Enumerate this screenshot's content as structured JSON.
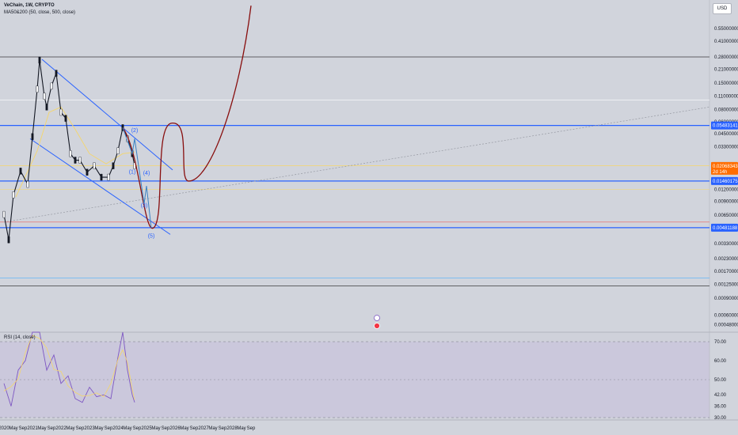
{
  "header": {
    "title": "VeChain, 1W, CRYPTO",
    "indicator": "MA50&200 (50, close, 500, close)"
  },
  "currency": "USD",
  "rsi_label": "RSI (14, close)",
  "colors": {
    "background": "#d1d4dc",
    "channel": "#2962ff",
    "projection": "#880e0e",
    "ma_yellow": "#f5d66b",
    "rsi_line": "#7e57c2",
    "rsi_band": "#c9c5dc",
    "price_tag": "#ff6d00",
    "level_tag": "#2962ff"
  },
  "price_tags": {
    "current_price": "0.02068343",
    "countdown": "2d 14h",
    "upper_level": "0.05483141",
    "middle_level": "0.01460175",
    "lower_level": "0.00481188"
  },
  "wave_labels": [
    "(1)",
    "(2)",
    "(3)",
    "(4)",
    "(5)"
  ],
  "chart_data": [
    {
      "type": "line",
      "title": "VeChain, 1W, CRYPTO",
      "scale": "log",
      "ylim": [
        0.0004,
        0.9
      ],
      "y_ticks": [
        "0.55000000",
        "0.41000000",
        "0.28000000",
        "0.21000000",
        "0.15000000",
        "0.11000000",
        "0.08000000",
        "0.06000000",
        "0.04500000",
        "0.03300000",
        "0.02000000",
        "0.01200000",
        "0.00900000",
        "0.00650000",
        "0.00330000",
        "0.00230000",
        "0.00170000",
        "0.00125000",
        "0.00090000",
        "0.00060000",
        "0.00048000"
      ],
      "x_ticks": [
        "2020",
        "May",
        "Sep",
        "2021",
        "May",
        "Sep",
        "2022",
        "May",
        "Sep",
        "2023",
        "May",
        "Sep",
        "2024",
        "May",
        "Sep",
        "2025",
        "May",
        "Sep",
        "2026",
        "May",
        "Sep",
        "2027",
        "May",
        "Sep",
        "2028",
        "May",
        "Sep"
      ],
      "series": [
        {
          "name": "VeChain",
          "x": [
            "2020-01",
            "2020-03",
            "2020-05",
            "2020-08",
            "2020-11",
            "2021-01",
            "2021-03",
            "2021-04",
            "2021-06",
            "2021-07",
            "2021-09",
            "2021-11",
            "2022-01",
            "2022-03",
            "2022-05",
            "2022-07",
            "2022-09",
            "2022-12",
            "2023-03",
            "2023-06",
            "2023-09",
            "2023-11",
            "2024-01",
            "2024-03",
            "2024-05",
            "2024-07",
            "2024-08"
          ],
          "values": [
            0.0066,
            0.0036,
            0.0105,
            0.0185,
            0.0135,
            0.042,
            0.13,
            0.26,
            0.11,
            0.085,
            0.14,
            0.19,
            0.075,
            0.065,
            0.028,
            0.024,
            0.024,
            0.018,
            0.021,
            0.016,
            0.016,
            0.021,
            0.03,
            0.052,
            0.04,
            0.028,
            0.021
          ]
        }
      ],
      "horizontal_levels": [
        0.28,
        0.1,
        0.05483141,
        0.021,
        0.01460175,
        0.0055,
        0.00481188,
        0.00145,
        0.0012
      ],
      "annotations": [
        "(1)",
        "(2)",
        "(3)",
        "(4)",
        "(5)"
      ]
    },
    {
      "type": "line",
      "title": "RSI (14, close)",
      "ylim": [
        30,
        70
      ],
      "y_ticks": [
        "70.00",
        "60.00",
        "50.00",
        "42.00",
        "36.00",
        "30.00"
      ],
      "series": [
        {
          "name": "RSI",
          "x": [
            "2020-01",
            "2020-04",
            "2020-07",
            "2020-10",
            "2021-01",
            "2021-04",
            "2021-07",
            "2021-10",
            "2022-01",
            "2022-04",
            "2022-07",
            "2022-10",
            "2023-01",
            "2023-04",
            "2023-07",
            "2023-10",
            "2024-01",
            "2024-03",
            "2024-05",
            "2024-07",
            "2024-08"
          ],
          "values": [
            48,
            36,
            55,
            60,
            78,
            82,
            55,
            63,
            48,
            52,
            40,
            38,
            46,
            41,
            42,
            40,
            62,
            80,
            55,
            42,
            38
          ]
        }
      ]
    }
  ]
}
